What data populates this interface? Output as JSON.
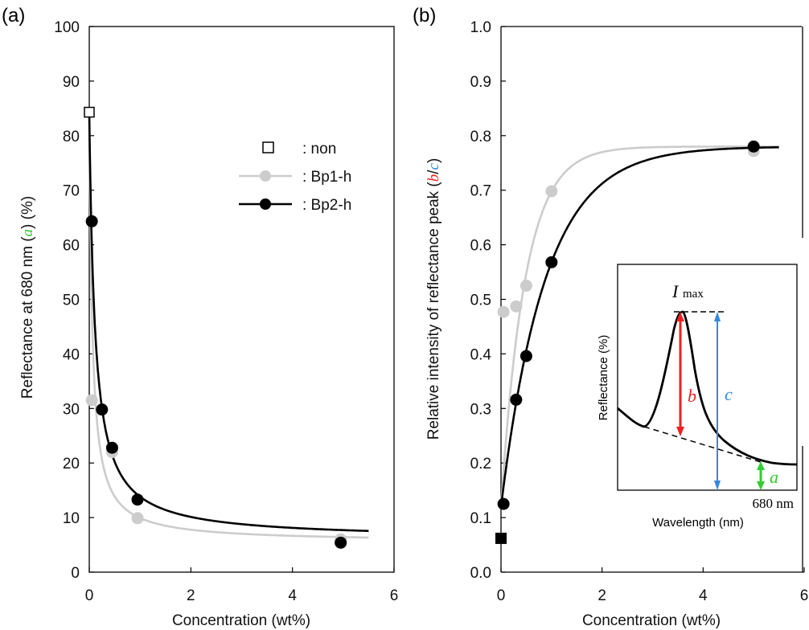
{
  "chart_data": [
    {
      "type": "scatter",
      "panel_label": "(a)",
      "xlabel": "Concentration (wt%)",
      "ylabel_parts": [
        "Reflectance at 680 nm (",
        "a",
        ") (%)"
      ],
      "xlim": [
        0,
        6
      ],
      "ylim": [
        0,
        100
      ],
      "xticks": [
        "0",
        "2",
        "4",
        "6"
      ],
      "yticks": [
        "0",
        "10",
        "20",
        "30",
        "40",
        "50",
        "60",
        "70",
        "80",
        "90",
        "100"
      ],
      "grid": false,
      "legend_position": "top-right",
      "series": [
        {
          "name": ": non",
          "marker": "open-square",
          "color": "#000000",
          "x": [
            0
          ],
          "y": [
            84.3
          ]
        },
        {
          "name": ": Bp1-h",
          "marker": "circle",
          "color": "#cccccc",
          "x": [
            0.05,
            0.45,
            0.95,
            4.95
          ],
          "y": [
            31.5,
            22.0,
            9.9,
            6.0
          ]
        },
        {
          "name": ": Bp2-h",
          "marker": "circle",
          "color": "#000000",
          "x": [
            0.05,
            0.25,
            0.45,
            0.95,
            4.95
          ],
          "y": [
            64.3,
            29.8,
            22.8,
            13.3,
            5.4
          ]
        }
      ]
    },
    {
      "type": "scatter",
      "panel_label": "(b)",
      "xlabel": "Concentration (wt%)",
      "ylabel_parts": [
        "Relative intensity of reflectance peak (",
        "b",
        "/",
        "c",
        ")"
      ],
      "xlim": [
        0,
        6
      ],
      "ylim": [
        0,
        1.0
      ],
      "xticks": [
        "0",
        "2",
        "4",
        "6"
      ],
      "yticks": [
        "0.0",
        "0.1",
        "0.2",
        "0.3",
        "0.4",
        "0.5",
        "0.6",
        "0.7",
        "0.8",
        "0.9",
        "1.0"
      ],
      "grid": false,
      "series": [
        {
          "marker": "filled-square",
          "color": "#000000",
          "x": [
            0
          ],
          "y": [
            0.062
          ]
        },
        {
          "marker": "circle",
          "color": "#cccccc",
          "x": [
            0.05,
            0.3,
            0.5,
            1.0,
            5.0
          ],
          "y": [
            0.477,
            0.487,
            0.525,
            0.698,
            0.772
          ]
        },
        {
          "marker": "circle",
          "color": "#000000",
          "x": [
            0.05,
            0.3,
            0.5,
            1.0,
            5.0
          ],
          "y": [
            0.125,
            0.316,
            0.396,
            0.568,
            0.78
          ]
        }
      ],
      "inset": {
        "imax_label": "I",
        "imax_sub": "max",
        "b_label": "b",
        "c_label": "c",
        "a_label": "a",
        "wavelength_tick": "680 nm",
        "xlabel": "Wavelength (nm)",
        "ylabel": "Reflectance (%)"
      }
    }
  ],
  "colors": {
    "a": "#33cc33",
    "b": "#ee2222",
    "c": "#3388dd",
    "bp1": "#cccccc",
    "bp2": "#000000"
  }
}
